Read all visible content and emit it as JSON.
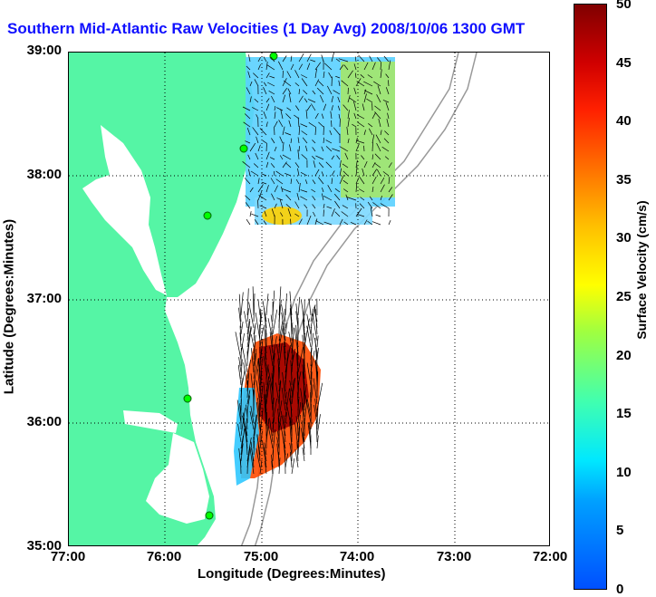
{
  "title": "Southern Mid-Atlantic Raw Velocities (1 Day Avg) 2008/10/06 1300 GMT",
  "x_axis": {
    "label": "Longitude (Degrees:Minutes)",
    "ticks": [
      "77:00",
      "76:00",
      "75:00",
      "74:00",
      "73:00",
      "72:00"
    ]
  },
  "y_axis": {
    "label": "Latitude (Degrees:Minutes)",
    "ticks": [
      "39:00",
      "38:00",
      "37:00",
      "36:00",
      "35:00"
    ]
  },
  "colorbar": {
    "label": "Surface Velocity (cm/s)",
    "ticks": [
      "50",
      "45",
      "40",
      "35",
      "30",
      "25",
      "20",
      "15",
      "10",
      "5",
      "0"
    ]
  },
  "colors": {
    "land": "#55f5a5",
    "title": "#1010ff",
    "bathymetry": "#999999",
    "station": "#00ff00",
    "grid": "#000000"
  },
  "map_extent": {
    "lon_min": -77,
    "lon_max": -72,
    "lat_min": 35,
    "lat_max": 39
  }
}
